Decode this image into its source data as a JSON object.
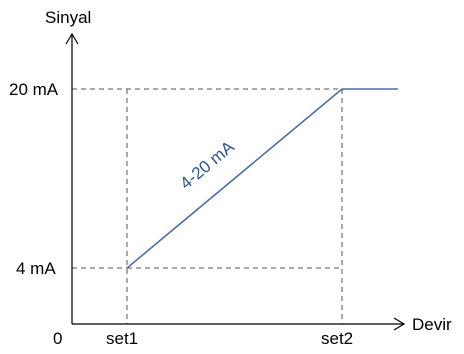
{
  "axes": {
    "y_label": "Sinyal",
    "x_label": "Devir",
    "origin_label": "0"
  },
  "y_ticks": [
    {
      "label": "20 mA",
      "value": 20
    },
    {
      "label": "4 mA",
      "value": 4
    }
  ],
  "x_ticks": [
    {
      "label": "set1"
    },
    {
      "label": "set2"
    }
  ],
  "curve": {
    "label": "4-20 mA",
    "color": "#4a6fa5",
    "label_color": "#2e5594"
  },
  "colors": {
    "axis": "#000000",
    "guide": "#555555"
  }
}
